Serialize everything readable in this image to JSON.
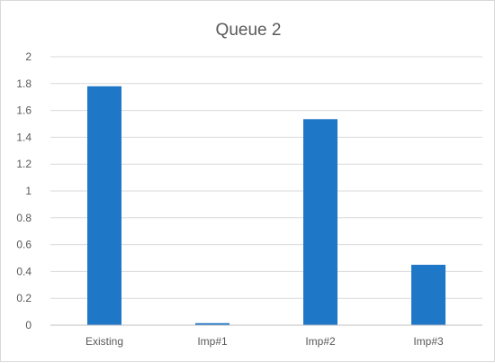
{
  "chart_data": {
    "type": "bar",
    "title": "Queue 2",
    "categories": [
      "Existing",
      "Imp#1",
      "Imp#2",
      "Imp#3"
    ],
    "values": [
      1.78,
      0.015,
      1.535,
      0.45
    ],
    "ylim": [
      0,
      2
    ],
    "yticks": [
      0,
      0.2,
      0.4,
      0.6,
      0.8,
      1,
      1.2,
      1.4,
      1.6,
      1.8,
      2
    ],
    "ytick_labels": [
      "0",
      "0.2",
      "0.4",
      "0.6",
      "0.8",
      "1",
      "1.2",
      "1.4",
      "1.6",
      "1.8",
      "2"
    ],
    "xlabel": "",
    "ylabel": "",
    "grid": true,
    "legend": false,
    "bar_color": "#1f77c8"
  }
}
